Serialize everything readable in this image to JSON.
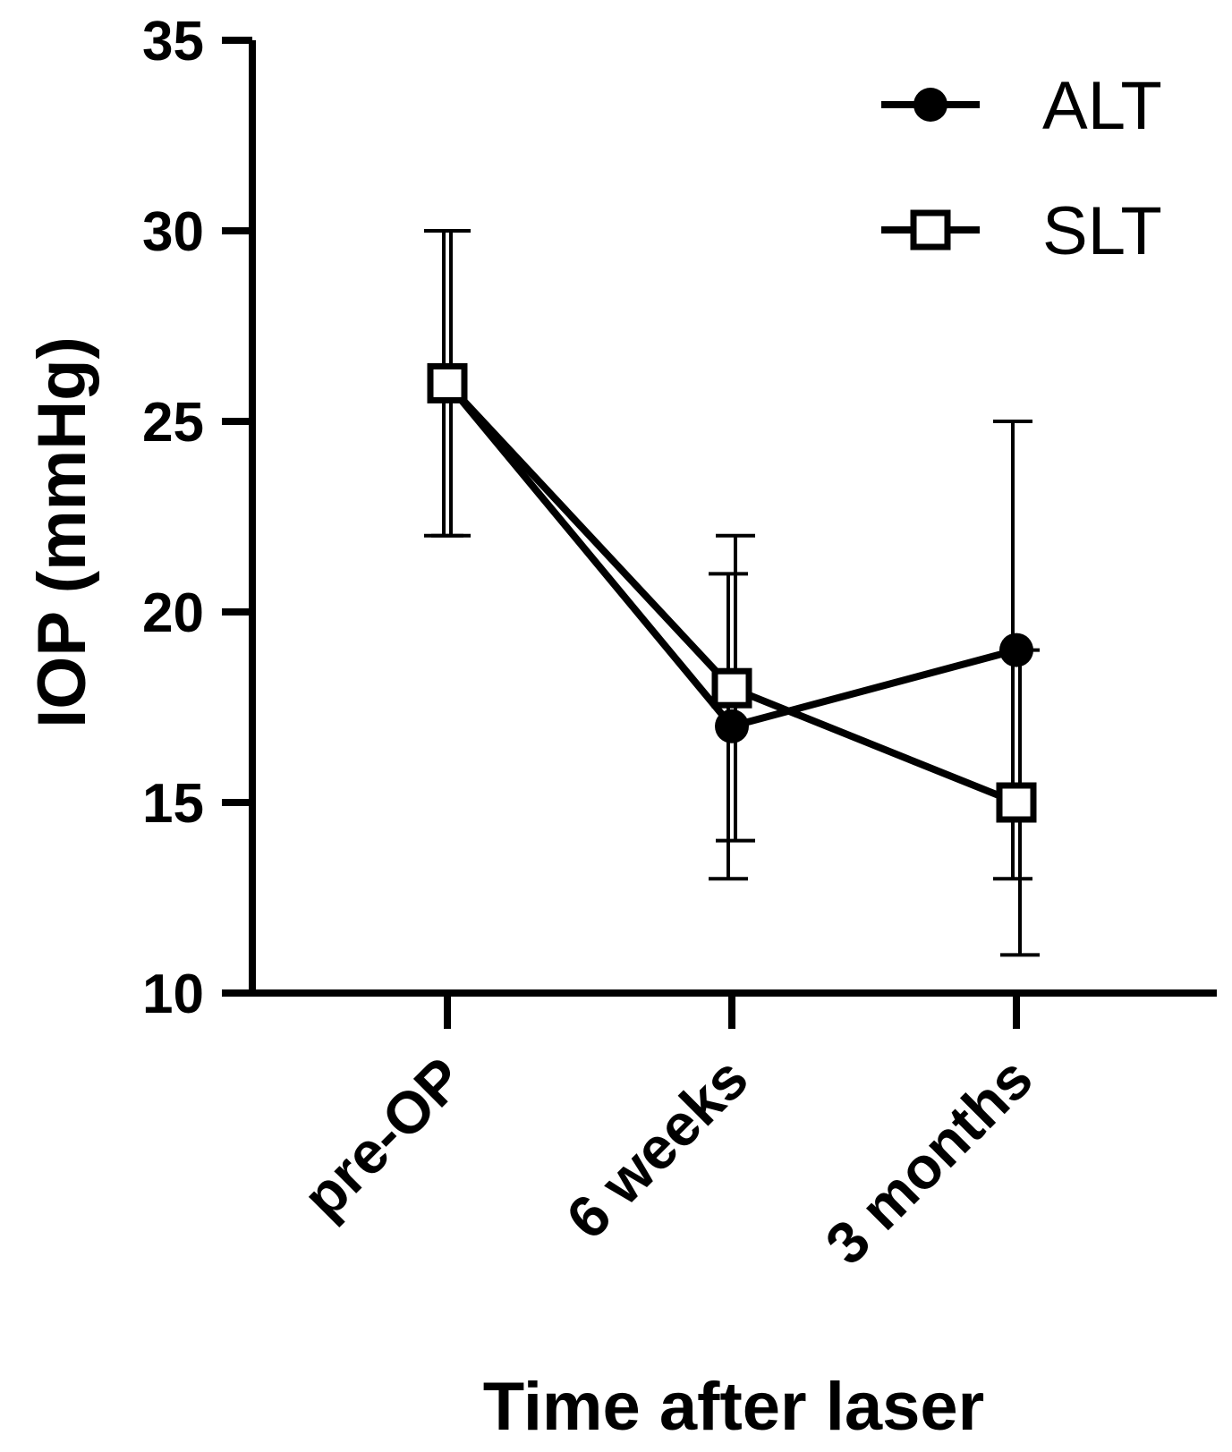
{
  "chart_data": {
    "type": "line",
    "title": "",
    "xlabel": "Time after laser",
    "ylabel": "IOP (mmHg)",
    "categories": [
      "pre-OP",
      "6 weeks",
      "3 months"
    ],
    "ylim": [
      10,
      35
    ],
    "yticks": [
      10,
      15,
      20,
      25,
      30,
      35
    ],
    "legend_position": "top-right",
    "series": [
      {
        "name": "ALT",
        "marker": "filled-circle",
        "values": [
          26,
          17,
          19
        ],
        "error_low": [
          22,
          13,
          13
        ],
        "error_high": [
          30,
          21,
          25
        ]
      },
      {
        "name": "SLT",
        "marker": "open-square",
        "values": [
          26,
          18,
          15
        ],
        "error_low": [
          22,
          14,
          11
        ],
        "error_high": [
          30,
          22,
          19
        ]
      }
    ],
    "colors": {
      "line": "#000000",
      "background": "#ffffff"
    }
  }
}
